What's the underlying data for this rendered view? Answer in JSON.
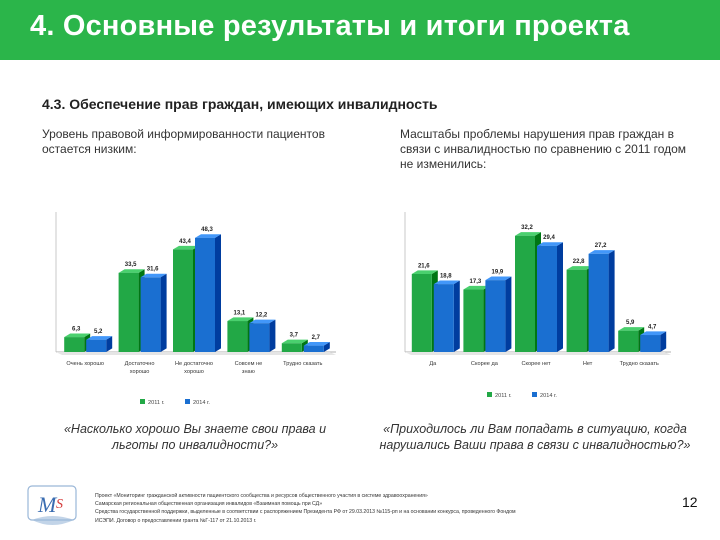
{
  "header": {
    "title": "4. Основные результаты и итоги проекта"
  },
  "section": {
    "subtitle": "4.3. Обеспечение прав граждан, имеющих инвалидность"
  },
  "left_panel": {
    "description": "Уровень правовой информированности пациентов остается низким:",
    "question": "«Насколько хорошо Вы знаете свои права и льготы по инвалидности?»"
  },
  "right_panel": {
    "description": "Масштабы проблемы нарушения прав граждан в связи с инвалидностью по сравнению с 2011 годом не изменились:",
    "question": "«Приходилось ли Вам попадать в ситуацию, когда нарушались Ваши права в связи с инвалидностью?»"
  },
  "chart_data": [
    {
      "type": "bar",
      "title": "",
      "categories": [
        "Очень хорошо",
        "Достаточно хорошо",
        "Не достаточно хорошо",
        "Совсем не знаю",
        "Трудно сказать"
      ],
      "series": [
        {
          "name": "2011 г.",
          "values": [
            6.3,
            33.5,
            43.4,
            13.1,
            3.7
          ],
          "labels": [
            "6,3",
            "33,5",
            "43,4",
            "13,1",
            "3,7"
          ]
        },
        {
          "name": "2014 г.",
          "values": [
            5.2,
            31.6,
            48.3,
            12.2,
            2.7
          ],
          "labels": [
            "5,2",
            "31,6",
            "48,3",
            "12,2",
            "2,7"
          ]
        }
      ],
      "ylim": [
        0,
        55
      ],
      "xlabel": "",
      "ylabel": "",
      "colors": [
        "#22a846",
        "#1a6fd1"
      ]
    },
    {
      "type": "bar",
      "title": "",
      "categories": [
        "Да",
        "Скорее да",
        "Скорее нет",
        "Нет",
        "Трудно сказать"
      ],
      "series": [
        {
          "name": "2011 г.",
          "values": [
            21.6,
            17.3,
            32.2,
            22.8,
            5.9
          ],
          "labels": [
            "21,6",
            "17,3",
            "32,2",
            "22,8",
            "5,9"
          ]
        },
        {
          "name": "2014 г.",
          "values": [
            18.8,
            19.9,
            29.4,
            27.2,
            4.7
          ],
          "labels": [
            "18,8",
            "19,9",
            "29,4",
            "27,2",
            "4,7"
          ]
        }
      ],
      "ylim": [
        0,
        36
      ],
      "xlabel": "",
      "ylabel": "",
      "colors": [
        "#22a846",
        "#1a6fd1"
      ]
    }
  ],
  "footer": {
    "line1": "Проект «Мониторинг гражданской активности пациентского сообщества и ресурсов общественного участия в системе здравоохранения»",
    "line2": "Самарская региональная общественная организация инвалидов «Взаимная помощь при СД»",
    "line3": "Средства государственной поддержки, выделенные в соответствии с распоряжением Президента РФ от 29.03.2013 №115-рп и на основании конкурса, проведенного Фондом",
    "line4": "ИСЭПИ. Договор о предоставлении гранта №Г-117 от 21.10.2013 г.",
    "page_number": "12"
  }
}
